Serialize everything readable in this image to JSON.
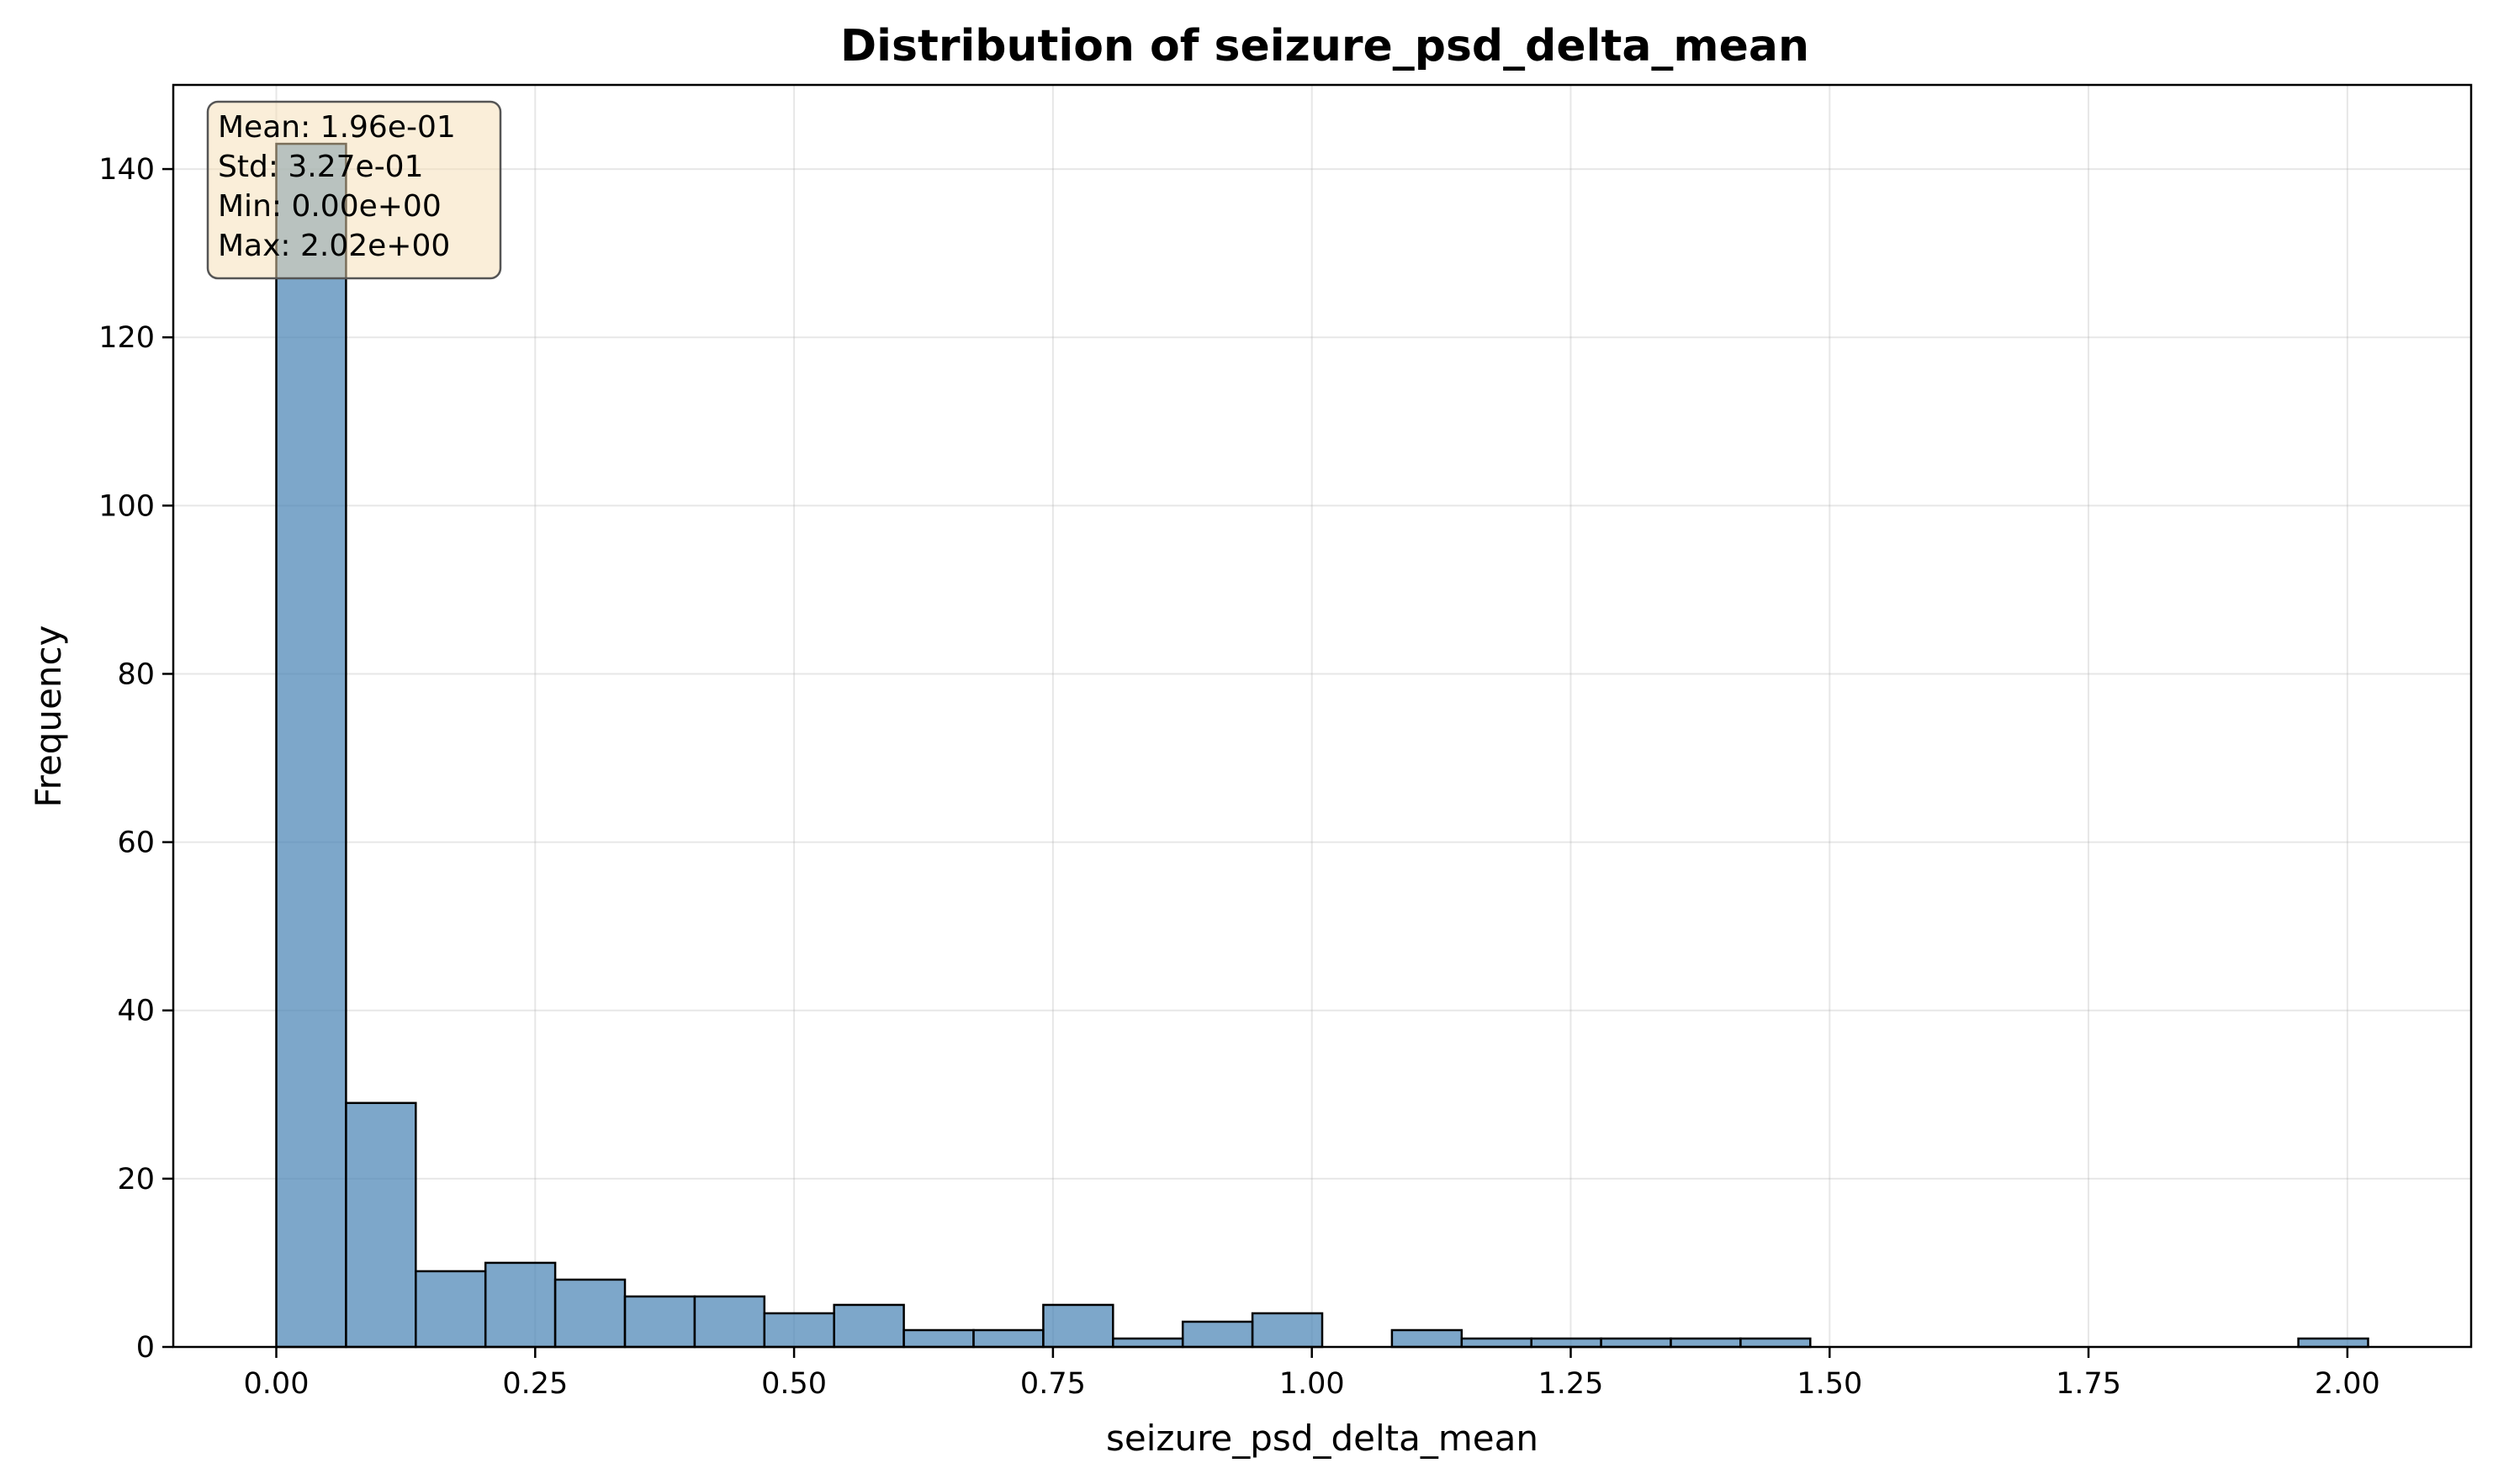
{
  "chart_data": {
    "type": "bar",
    "title": "Distribution of seizure_psd_delta_mean",
    "xlabel": "seizure_psd_delta_mean",
    "ylabel": "Frequency",
    "xlim": [
      -0.0995,
      2.1195
    ],
    "ylim": [
      0,
      150
    ],
    "xticks": [
      "0.00",
      "0.25",
      "0.50",
      "0.75",
      "1.00",
      "1.25",
      "1.50",
      "1.75",
      "2.00"
    ],
    "yticks": [
      "0",
      "20",
      "40",
      "60",
      "80",
      "100",
      "120",
      "140"
    ],
    "grid": true,
    "bar_color": "#4682b4",
    "edge_color": "#000000",
    "bins": {
      "start": 0.0,
      "end": 2.02,
      "counts": [
        143,
        29,
        9,
        10,
        8,
        6,
        6,
        4,
        5,
        2,
        2,
        5,
        1,
        3,
        4,
        0,
        2,
        1,
        1,
        1,
        1,
        1,
        0,
        0,
        0,
        0,
        0,
        0,
        0,
        1
      ]
    },
    "annotation": {
      "lines": [
        "Mean: 1.96e-01",
        "Std: 3.27e-01",
        "Min: 0.00e+00",
        "Max: 2.02e+00"
      ],
      "placement": "top-left",
      "background": "#f5deb3"
    }
  }
}
